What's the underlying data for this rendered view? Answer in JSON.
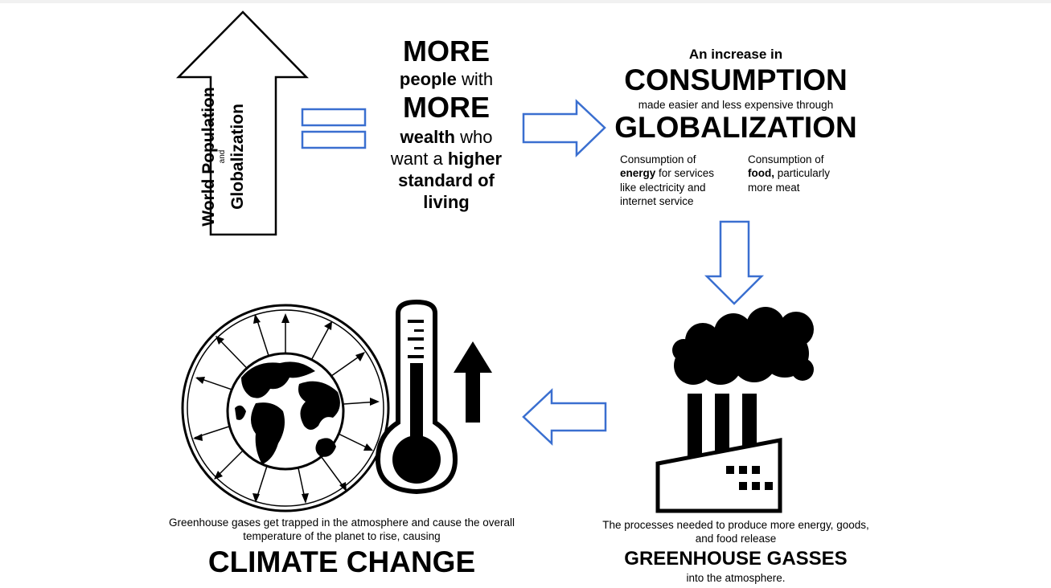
{
  "population": {
    "line1": "World Population",
    "line2": "and",
    "line3": "Globalization"
  },
  "more_block": {
    "more1": "MORE",
    "people_bold": "people",
    "people_rest": " with",
    "more2": "MORE",
    "wealth_bold": "wealth",
    "wealth_rest": " who",
    "want_rest": "want a ",
    "higher_bold": "higher",
    "standard": "standard of",
    "living": "living"
  },
  "consumption": {
    "intro": "An increase in",
    "headline": "CONSUMPTION",
    "subtext": "made easier and less expensive through",
    "globalization": "GLOBALIZATION"
  },
  "energy_note": {
    "pre": "Consumption of",
    "bold": "energy",
    "rest": " for services like electricity and internet service"
  },
  "food_note": {
    "pre": "Consumption of",
    "bold": "food,",
    "rest": " particularly more meat"
  },
  "greenhouse": {
    "text": "The processes needed to produce more energy, goods, and food release",
    "headline": "GREENHOUSE GASSES",
    "tail": "into the atmosphere."
  },
  "climate": {
    "text": "Greenhouse gases get trapped in the atmosphere and cause the overall temperature of the planet to rise, causing",
    "headline": "CLIMATE CHANGE"
  },
  "colors": {
    "arrow_blue": "#3a6fd0",
    "ink": "#000000",
    "background": "#ffffff"
  }
}
